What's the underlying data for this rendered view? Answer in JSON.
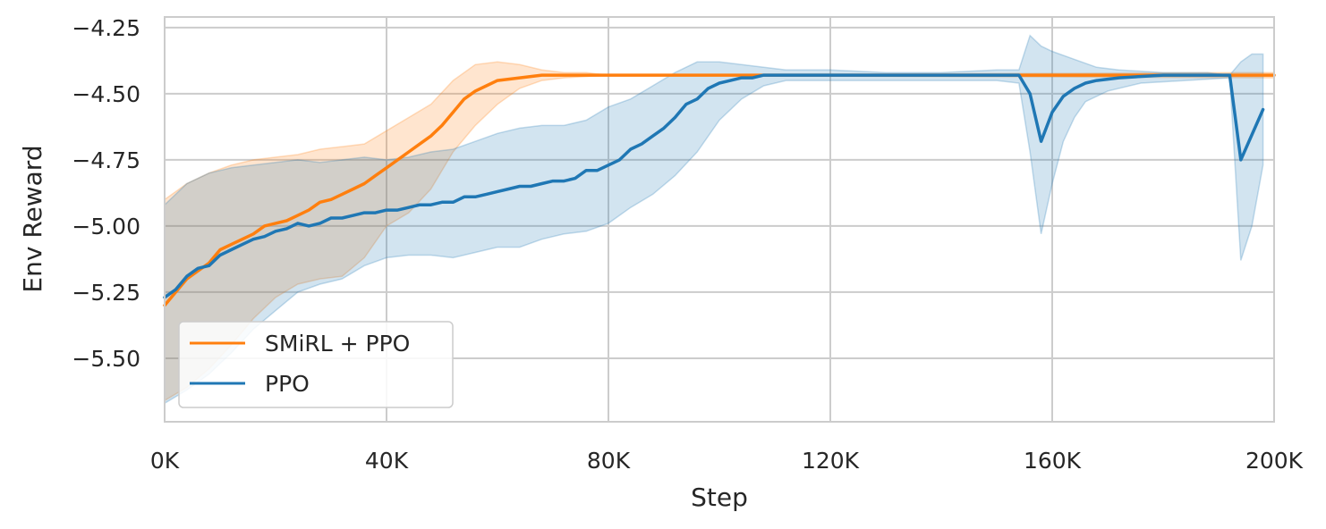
{
  "chart_data": {
    "type": "line",
    "xlabel": "Step",
    "ylabel": "Env Reward",
    "xlim": [
      0,
      200000
    ],
    "ylim": [
      -5.74,
      -4.21
    ],
    "x_ticks": [
      0,
      40000,
      80000,
      120000,
      160000,
      200000
    ],
    "x_tick_labels": [
      "0K",
      "40K",
      "80K",
      "120K",
      "160K",
      "200K"
    ],
    "y_ticks": [
      -4.25,
      -4.5,
      -4.75,
      -5.0,
      -5.25,
      -5.5
    ],
    "y_tick_labels": [
      "−4.25",
      "−4.50",
      "−4.75",
      "−5.00",
      "−5.25",
      "−5.50"
    ],
    "grid": true,
    "legend_position": "lower-left",
    "series": [
      {
        "name": "SMiRL + PPO",
        "color": "#ff7f0e",
        "points": [
          [
            0,
            -5.3
          ],
          [
            2000,
            -5.25
          ],
          [
            4000,
            -5.2
          ],
          [
            6000,
            -5.17
          ],
          [
            8000,
            -5.14
          ],
          [
            10000,
            -5.09
          ],
          [
            12000,
            -5.07
          ],
          [
            14000,
            -5.05
          ],
          [
            16000,
            -5.03
          ],
          [
            18000,
            -5.0
          ],
          [
            20000,
            -4.99
          ],
          [
            22000,
            -4.98
          ],
          [
            24000,
            -4.96
          ],
          [
            26000,
            -4.94
          ],
          [
            28000,
            -4.91
          ],
          [
            30000,
            -4.9
          ],
          [
            32000,
            -4.88
          ],
          [
            34000,
            -4.86
          ],
          [
            36000,
            -4.84
          ],
          [
            38000,
            -4.81
          ],
          [
            40000,
            -4.78
          ],
          [
            42000,
            -4.75
          ],
          [
            44000,
            -4.72
          ],
          [
            46000,
            -4.69
          ],
          [
            48000,
            -4.66
          ],
          [
            50000,
            -4.62
          ],
          [
            52000,
            -4.57
          ],
          [
            54000,
            -4.52
          ],
          [
            56000,
            -4.49
          ],
          [
            58000,
            -4.47
          ],
          [
            60000,
            -4.45
          ],
          [
            64000,
            -4.44
          ],
          [
            68000,
            -4.43
          ],
          [
            80000,
            -4.43
          ],
          [
            200000,
            -4.43
          ]
        ],
        "band_upper": [
          [
            0,
            -4.9
          ],
          [
            4000,
            -4.84
          ],
          [
            8000,
            -4.8
          ],
          [
            12000,
            -4.77
          ],
          [
            16000,
            -4.75
          ],
          [
            20000,
            -4.74
          ],
          [
            24000,
            -4.73
          ],
          [
            28000,
            -4.71
          ],
          [
            32000,
            -4.7
          ],
          [
            36000,
            -4.69
          ],
          [
            40000,
            -4.64
          ],
          [
            44000,
            -4.59
          ],
          [
            48000,
            -4.54
          ],
          [
            52000,
            -4.45
          ],
          [
            56000,
            -4.39
          ],
          [
            60000,
            -4.38
          ],
          [
            64000,
            -4.39
          ],
          [
            68000,
            -4.41
          ],
          [
            72000,
            -4.42
          ],
          [
            76000,
            -4.42
          ],
          [
            80000,
            -4.43
          ],
          [
            200000,
            -4.42
          ]
        ],
        "band_lower": [
          [
            0,
            -5.66
          ],
          [
            4000,
            -5.61
          ],
          [
            8000,
            -5.54
          ],
          [
            12000,
            -5.45
          ],
          [
            16000,
            -5.35
          ],
          [
            20000,
            -5.27
          ],
          [
            24000,
            -5.22
          ],
          [
            28000,
            -5.2
          ],
          [
            32000,
            -5.19
          ],
          [
            36000,
            -5.12
          ],
          [
            40000,
            -5.0
          ],
          [
            44000,
            -4.95
          ],
          [
            48000,
            -4.86
          ],
          [
            52000,
            -4.72
          ],
          [
            56000,
            -4.62
          ],
          [
            60000,
            -4.54
          ],
          [
            64000,
            -4.48
          ],
          [
            68000,
            -4.45
          ],
          [
            72000,
            -4.44
          ],
          [
            80000,
            -4.43
          ],
          [
            200000,
            -4.44
          ]
        ]
      },
      {
        "name": "PPO",
        "color": "#1f77b4",
        "points": [
          [
            0,
            -5.27
          ],
          [
            2000,
            -5.24
          ],
          [
            4000,
            -5.19
          ],
          [
            6000,
            -5.16
          ],
          [
            8000,
            -5.15
          ],
          [
            10000,
            -5.11
          ],
          [
            12000,
            -5.09
          ],
          [
            14000,
            -5.07
          ],
          [
            16000,
            -5.05
          ],
          [
            18000,
            -5.04
          ],
          [
            20000,
            -5.02
          ],
          [
            22000,
            -5.01
          ],
          [
            24000,
            -4.99
          ],
          [
            26000,
            -5.0
          ],
          [
            28000,
            -4.99
          ],
          [
            30000,
            -4.97
          ],
          [
            32000,
            -4.97
          ],
          [
            34000,
            -4.96
          ],
          [
            36000,
            -4.95
          ],
          [
            38000,
            -4.95
          ],
          [
            40000,
            -4.94
          ],
          [
            42000,
            -4.94
          ],
          [
            44000,
            -4.93
          ],
          [
            46000,
            -4.92
          ],
          [
            48000,
            -4.92
          ],
          [
            50000,
            -4.91
          ],
          [
            52000,
            -4.91
          ],
          [
            54000,
            -4.89
          ],
          [
            56000,
            -4.89
          ],
          [
            58000,
            -4.88
          ],
          [
            60000,
            -4.87
          ],
          [
            62000,
            -4.86
          ],
          [
            64000,
            -4.85
          ],
          [
            66000,
            -4.85
          ],
          [
            68000,
            -4.84
          ],
          [
            70000,
            -4.83
          ],
          [
            72000,
            -4.83
          ],
          [
            74000,
            -4.82
          ],
          [
            76000,
            -4.79
          ],
          [
            78000,
            -4.79
          ],
          [
            80000,
            -4.77
          ],
          [
            82000,
            -4.75
          ],
          [
            84000,
            -4.71
          ],
          [
            86000,
            -4.69
          ],
          [
            88000,
            -4.66
          ],
          [
            90000,
            -4.63
          ],
          [
            92000,
            -4.59
          ],
          [
            94000,
            -4.54
          ],
          [
            96000,
            -4.52
          ],
          [
            98000,
            -4.48
          ],
          [
            100000,
            -4.46
          ],
          [
            102000,
            -4.45
          ],
          [
            104000,
            -4.44
          ],
          [
            106000,
            -4.44
          ],
          [
            108000,
            -4.43
          ],
          [
            112000,
            -4.43
          ],
          [
            150000,
            -4.43
          ],
          [
            154000,
            -4.43
          ],
          [
            156000,
            -4.5
          ],
          [
            158000,
            -4.68
          ],
          [
            160000,
            -4.57
          ],
          [
            162000,
            -4.51
          ],
          [
            164000,
            -4.48
          ],
          [
            166000,
            -4.46
          ],
          [
            168000,
            -4.45
          ],
          [
            172000,
            -4.44
          ],
          [
            180000,
            -4.43
          ],
          [
            192000,
            -4.43
          ],
          [
            194000,
            -4.75
          ],
          [
            198000,
            -4.56
          ]
        ],
        "band_upper": [
          [
            0,
            -4.92
          ],
          [
            4000,
            -4.84
          ],
          [
            8000,
            -4.8
          ],
          [
            12000,
            -4.78
          ],
          [
            16000,
            -4.77
          ],
          [
            20000,
            -4.76
          ],
          [
            24000,
            -4.75
          ],
          [
            28000,
            -4.76
          ],
          [
            32000,
            -4.75
          ],
          [
            36000,
            -4.74
          ],
          [
            40000,
            -4.75
          ],
          [
            44000,
            -4.74
          ],
          [
            48000,
            -4.72
          ],
          [
            52000,
            -4.71
          ],
          [
            56000,
            -4.68
          ],
          [
            60000,
            -4.65
          ],
          [
            64000,
            -4.63
          ],
          [
            68000,
            -4.62
          ],
          [
            72000,
            -4.62
          ],
          [
            76000,
            -4.6
          ],
          [
            80000,
            -4.55
          ],
          [
            84000,
            -4.52
          ],
          [
            88000,
            -4.47
          ],
          [
            92000,
            -4.42
          ],
          [
            96000,
            -4.38
          ],
          [
            100000,
            -4.38
          ],
          [
            104000,
            -4.39
          ],
          [
            108000,
            -4.4
          ],
          [
            112000,
            -4.41
          ],
          [
            120000,
            -4.41
          ],
          [
            130000,
            -4.42
          ],
          [
            140000,
            -4.42
          ],
          [
            150000,
            -4.41
          ],
          [
            154000,
            -4.41
          ],
          [
            156000,
            -4.28
          ],
          [
            158000,
            -4.32
          ],
          [
            160000,
            -4.34
          ],
          [
            164000,
            -4.37
          ],
          [
            168000,
            -4.4
          ],
          [
            172000,
            -4.41
          ],
          [
            180000,
            -4.42
          ],
          [
            188000,
            -4.42
          ],
          [
            192000,
            -4.43
          ],
          [
            194000,
            -4.38
          ],
          [
            196000,
            -4.35
          ],
          [
            198000,
            -4.35
          ]
        ],
        "band_lower": [
          [
            0,
            -5.67
          ],
          [
            4000,
            -5.62
          ],
          [
            8000,
            -5.56
          ],
          [
            12000,
            -5.48
          ],
          [
            16000,
            -5.39
          ],
          [
            20000,
            -5.32
          ],
          [
            24000,
            -5.25
          ],
          [
            28000,
            -5.22
          ],
          [
            32000,
            -5.2
          ],
          [
            36000,
            -5.15
          ],
          [
            40000,
            -5.12
          ],
          [
            44000,
            -5.11
          ],
          [
            48000,
            -5.11
          ],
          [
            52000,
            -5.12
          ],
          [
            56000,
            -5.1
          ],
          [
            60000,
            -5.08
          ],
          [
            64000,
            -5.08
          ],
          [
            68000,
            -5.05
          ],
          [
            72000,
            -5.03
          ],
          [
            76000,
            -5.02
          ],
          [
            80000,
            -4.99
          ],
          [
            84000,
            -4.93
          ],
          [
            88000,
            -4.88
          ],
          [
            92000,
            -4.81
          ],
          [
            96000,
            -4.72
          ],
          [
            100000,
            -4.6
          ],
          [
            104000,
            -4.52
          ],
          [
            108000,
            -4.47
          ],
          [
            112000,
            -4.45
          ],
          [
            120000,
            -4.45
          ],
          [
            140000,
            -4.45
          ],
          [
            150000,
            -4.45
          ],
          [
            154000,
            -4.46
          ],
          [
            156000,
            -4.72
          ],
          [
            158000,
            -5.03
          ],
          [
            160000,
            -4.84
          ],
          [
            162000,
            -4.68
          ],
          [
            164000,
            -4.59
          ],
          [
            166000,
            -4.53
          ],
          [
            170000,
            -4.49
          ],
          [
            176000,
            -4.46
          ],
          [
            184000,
            -4.45
          ],
          [
            192000,
            -4.44
          ],
          [
            194000,
            -5.13
          ],
          [
            196000,
            -5.0
          ],
          [
            198000,
            -4.77
          ]
        ]
      }
    ]
  }
}
